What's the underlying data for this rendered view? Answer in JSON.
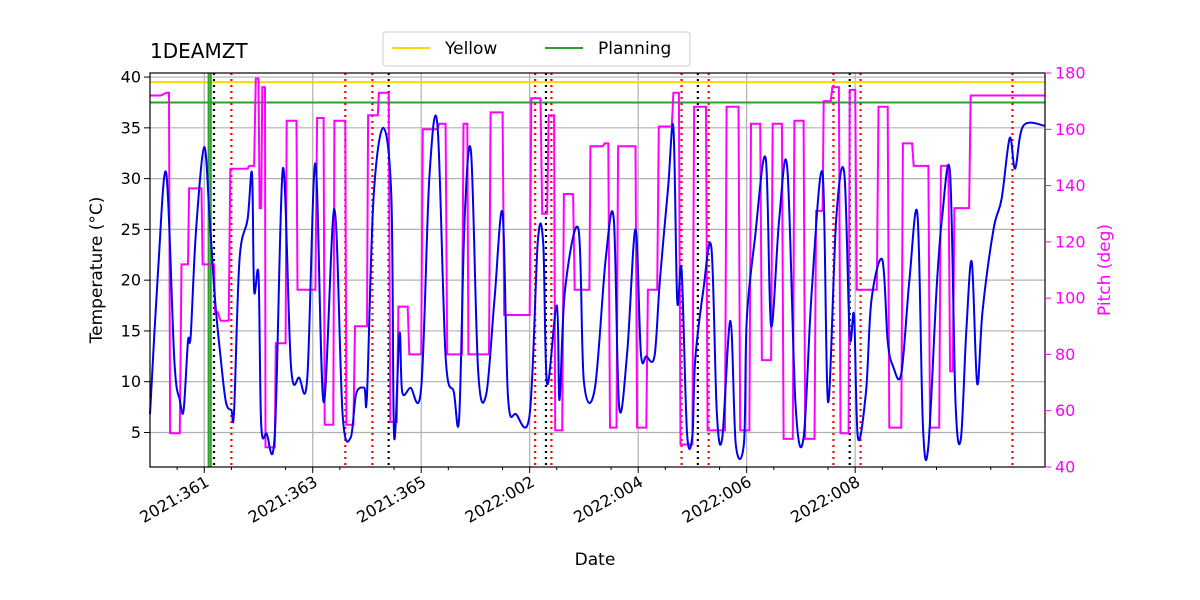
{
  "chart_data": {
    "type": "line",
    "title": "1DEAMZT",
    "xlabel": "Date",
    "ylabel": "Temperature ($^\\circ$C)",
    "ylabel_display": "Temperature (°C)",
    "y2label": "Pitch (deg)",
    "x_units": "day offset from 2021:360.0 (2022:001 = 6)",
    "xlim": [
      0,
      16.5
    ],
    "ylim": [
      1.6,
      40.4
    ],
    "y2lim": [
      40,
      180
    ],
    "grid": true,
    "x_ticks": [
      {
        "value": 1,
        "label": "2021:361"
      },
      {
        "value": 3,
        "label": "2021:363"
      },
      {
        "value": 5,
        "label": "2021:365"
      },
      {
        "value": 7,
        "label": "2022:002"
      },
      {
        "value": 9,
        "label": "2022:004"
      },
      {
        "value": 11,
        "label": "2022:006"
      },
      {
        "value": 13,
        "label": "2022:008"
      }
    ],
    "y_ticks": [
      5,
      10,
      15,
      20,
      25,
      30,
      35,
      40
    ],
    "y2_ticks": [
      40,
      60,
      80,
      100,
      120,
      140,
      160,
      180
    ],
    "legend": {
      "placement": "top-center",
      "entries": [
        {
          "label": "Yellow",
          "color": "#ffd700"
        },
        {
          "label": "Planning",
          "color": "#2ca02c"
        }
      ]
    },
    "limits": [
      {
        "name": "Yellow",
        "value": 39.5,
        "color": "#ffd700"
      },
      {
        "name": "Planning",
        "value": 37.5,
        "color": "#2ca02c"
      }
    ],
    "planning_vertical_lines": [
      1.08,
      1.12
    ],
    "red_dotted_lines": [
      1.5,
      3.6,
      4.1,
      7.1,
      7.4,
      9.8,
      10.3,
      12.6,
      13.1,
      15.9
    ],
    "black_dotted_lines": [
      1.18,
      4.4,
      7.3,
      10.1,
      12.9
    ],
    "temperature_series": {
      "name": "1DEAMZT",
      "color": "#0000ee",
      "points": [
        [
          0,
          6.8
        ],
        [
          0.15,
          21
        ],
        [
          0.3,
          30.5
        ],
        [
          0.45,
          12
        ],
        [
          0.55,
          8.2
        ],
        [
          0.62,
          7.2
        ],
        [
          0.7,
          14
        ],
        [
          0.75,
          14.5
        ],
        [
          0.85,
          25
        ],
        [
          1.0,
          33.1
        ],
        [
          1.1,
          26
        ],
        [
          1.2,
          18
        ],
        [
          1.3,
          12.5
        ],
        [
          1.4,
          8
        ],
        [
          1.5,
          7.2
        ],
        [
          1.55,
          7.1
        ],
        [
          1.65,
          22
        ],
        [
          1.8,
          26
        ],
        [
          1.88,
          30.5
        ],
        [
          1.92,
          19
        ],
        [
          2.0,
          20.5
        ],
        [
          2.05,
          5.8
        ],
        [
          2.15,
          4.9
        ],
        [
          2.3,
          4.8
        ],
        [
          2.45,
          31
        ],
        [
          2.6,
          11.5
        ],
        [
          2.75,
          10.4
        ],
        [
          2.9,
          10.4
        ],
        [
          3.05,
          31.5
        ],
        [
          3.2,
          8
        ],
        [
          3.4,
          27
        ],
        [
          3.55,
          6.8
        ],
        [
          3.7,
          4.5
        ],
        [
          3.8,
          8.8
        ],
        [
          3.95,
          9.4
        ],
        [
          4.0,
          8.7
        ],
        [
          4.12,
          28
        ],
        [
          4.3,
          35
        ],
        [
          4.45,
          28
        ],
        [
          4.5,
          4.6
        ],
        [
          4.6,
          14.8
        ],
        [
          4.65,
          9
        ],
        [
          4.8,
          9.4
        ],
        [
          5.0,
          9.4
        ],
        [
          5.15,
          30
        ],
        [
          5.3,
          35.2
        ],
        [
          5.45,
          12.5
        ],
        [
          5.6,
          9
        ],
        [
          5.7,
          6.5
        ],
        [
          5.8,
          26
        ],
        [
          5.92,
          32.5
        ],
        [
          6.05,
          11
        ],
        [
          6.2,
          8.8
        ],
        [
          6.35,
          18
        ],
        [
          6.5,
          26.6
        ],
        [
          6.6,
          8.5
        ],
        [
          6.75,
          6.8
        ],
        [
          7.0,
          6.8
        ],
        [
          7.15,
          23.8
        ],
        [
          7.25,
          23.5
        ],
        [
          7.32,
          9.8
        ],
        [
          7.5,
          17.5
        ],
        [
          7.55,
          8.2
        ],
        [
          7.65,
          19
        ],
        [
          7.9,
          25
        ],
        [
          8.0,
          10
        ],
        [
          8.2,
          9.3
        ],
        [
          8.4,
          22
        ],
        [
          8.55,
          26
        ],
        [
          8.65,
          7.5
        ],
        [
          8.8,
          13
        ],
        [
          8.95,
          25
        ],
        [
          9.05,
          12.8
        ],
        [
          9.15,
          12.5
        ],
        [
          9.3,
          12.5
        ],
        [
          9.4,
          20
        ],
        [
          9.55,
          29
        ],
        [
          9.65,
          35
        ],
        [
          9.72,
          18
        ],
        [
          9.8,
          21
        ],
        [
          9.9,
          5
        ],
        [
          10.0,
          4.7
        ],
        [
          10.05,
          12
        ],
        [
          10.2,
          19
        ],
        [
          10.35,
          23.2
        ],
        [
          10.45,
          7
        ],
        [
          10.55,
          4.5
        ],
        [
          10.7,
          16
        ],
        [
          10.8,
          3.8
        ],
        [
          10.95,
          4
        ],
        [
          11.0,
          16
        ],
        [
          11.15,
          24
        ],
        [
          11.35,
          32
        ],
        [
          11.45,
          15.5
        ],
        [
          11.6,
          26
        ],
        [
          11.75,
          31
        ],
        [
          11.9,
          7.8
        ],
        [
          12.05,
          4.5
        ],
        [
          12.2,
          19
        ],
        [
          12.4,
          30.5
        ],
        [
          12.5,
          8
        ],
        [
          12.65,
          26
        ],
        [
          12.8,
          30.5
        ],
        [
          12.9,
          14.5
        ],
        [
          12.98,
          16.5
        ],
        [
          13.05,
          4.5
        ],
        [
          13.2,
          9
        ],
        [
          13.3,
          18
        ],
        [
          13.5,
          22
        ],
        [
          13.6,
          14
        ],
        [
          13.7,
          11.5
        ],
        [
          13.85,
          10.8
        ],
        [
          14.0,
          20
        ],
        [
          14.15,
          26.4
        ],
        [
          14.25,
          5.5
        ],
        [
          14.35,
          3.7
        ],
        [
          14.5,
          19
        ],
        [
          14.6,
          26
        ],
        [
          14.75,
          30.5
        ],
        [
          14.85,
          8
        ],
        [
          14.95,
          4.4
        ],
        [
          15.05,
          15
        ],
        [
          15.15,
          21.8
        ],
        [
          15.25,
          9.8
        ],
        [
          15.35,
          17
        ],
        [
          15.55,
          25
        ],
        [
          15.7,
          28
        ],
        [
          15.85,
          34
        ],
        [
          15.95,
          31
        ],
        [
          16.1,
          35.2
        ],
        [
          16.5,
          35.2
        ]
      ]
    },
    "pitch_series": {
      "name": "Pitch",
      "color": "#ff00ff",
      "points": [
        [
          0,
          172
        ],
        [
          0.2,
          172
        ],
        [
          0.3,
          173
        ],
        [
          0.35,
          173
        ],
        [
          0.37,
          52
        ],
        [
          0.55,
          52
        ],
        [
          0.58,
          112
        ],
        [
          0.7,
          112
        ],
        [
          0.72,
          139
        ],
        [
          0.95,
          139
        ],
        [
          0.97,
          112
        ],
        [
          1.18,
          112
        ],
        [
          1.2,
          95
        ],
        [
          1.25,
          95
        ],
        [
          1.3,
          92
        ],
        [
          1.45,
          92
        ],
        [
          1.48,
          146
        ],
        [
          1.8,
          146
        ],
        [
          1.83,
          147
        ],
        [
          1.92,
          147
        ],
        [
          1.95,
          178
        ],
        [
          2.0,
          178
        ],
        [
          2.02,
          132
        ],
        [
          2.05,
          132
        ],
        [
          2.07,
          175
        ],
        [
          2.12,
          175
        ],
        [
          2.13,
          47
        ],
        [
          2.3,
          47
        ],
        [
          2.32,
          84
        ],
        [
          2.5,
          84
        ],
        [
          2.52,
          163
        ],
        [
          2.7,
          163
        ],
        [
          2.72,
          103
        ],
        [
          3.05,
          103
        ],
        [
          3.08,
          164
        ],
        [
          3.2,
          164
        ],
        [
          3.22,
          55
        ],
        [
          3.38,
          55
        ],
        [
          3.4,
          163
        ],
        [
          3.6,
          163
        ],
        [
          3.62,
          55
        ],
        [
          3.75,
          55
        ],
        [
          3.78,
          90
        ],
        [
          4.0,
          90
        ],
        [
          4.02,
          165
        ],
        [
          4.2,
          165
        ],
        [
          4.22,
          173
        ],
        [
          4.4,
          173
        ],
        [
          4.43,
          56
        ],
        [
          4.55,
          56
        ],
        [
          4.58,
          97
        ],
        [
          4.75,
          97
        ],
        [
          4.78,
          80
        ],
        [
          5.0,
          80
        ],
        [
          5.03,
          160
        ],
        [
          5.3,
          160
        ],
        [
          5.33,
          162
        ],
        [
          5.45,
          162
        ],
        [
          5.48,
          80
        ],
        [
          5.75,
          80
        ],
        [
          5.78,
          162
        ],
        [
          5.85,
          162
        ],
        [
          5.87,
          80
        ],
        [
          6.25,
          80
        ],
        [
          6.28,
          166
        ],
        [
          6.5,
          166
        ],
        [
          6.53,
          94
        ],
        [
          7.0,
          94
        ],
        [
          7.03,
          171
        ],
        [
          7.2,
          171
        ],
        [
          7.23,
          130
        ],
        [
          7.32,
          130
        ],
        [
          7.35,
          165
        ],
        [
          7.45,
          165
        ],
        [
          7.47,
          53
        ],
        [
          7.6,
          53
        ],
        [
          7.63,
          137
        ],
        [
          7.8,
          137
        ],
        [
          7.83,
          103
        ],
        [
          8.1,
          103
        ],
        [
          8.12,
          154
        ],
        [
          8.35,
          154
        ],
        [
          8.38,
          155
        ],
        [
          8.45,
          155
        ],
        [
          8.48,
          54
        ],
        [
          8.6,
          54
        ],
        [
          8.63,
          154
        ],
        [
          8.95,
          154
        ],
        [
          8.98,
          54
        ],
        [
          9.15,
          54
        ],
        [
          9.18,
          103
        ],
        [
          9.35,
          103
        ],
        [
          9.38,
          161
        ],
        [
          9.62,
          161
        ],
        [
          9.65,
          173
        ],
        [
          9.75,
          173
        ],
        [
          9.78,
          48
        ],
        [
          10.0,
          48
        ],
        [
          10.03,
          168
        ],
        [
          10.25,
          168
        ],
        [
          10.28,
          53
        ],
        [
          10.6,
          53
        ],
        [
          10.63,
          168
        ],
        [
          10.85,
          168
        ],
        [
          10.88,
          53
        ],
        [
          11.05,
          53
        ],
        [
          11.08,
          162
        ],
        [
          11.25,
          162
        ],
        [
          11.28,
          78
        ],
        [
          11.45,
          78
        ],
        [
          11.48,
          162
        ],
        [
          11.65,
          162
        ],
        [
          11.68,
          50
        ],
        [
          11.85,
          50
        ],
        [
          11.88,
          163
        ],
        [
          12.05,
          163
        ],
        [
          12.08,
          50
        ],
        [
          12.25,
          50
        ],
        [
          12.28,
          131
        ],
        [
          12.4,
          131
        ],
        [
          12.42,
          170
        ],
        [
          12.55,
          170
        ],
        [
          12.58,
          175
        ],
        [
          12.7,
          175
        ],
        [
          12.73,
          52
        ],
        [
          12.88,
          52
        ],
        [
          12.9,
          174
        ],
        [
          13.0,
          174
        ],
        [
          13.03,
          103
        ],
        [
          13.4,
          103
        ],
        [
          13.43,
          168
        ],
        [
          13.6,
          168
        ],
        [
          13.63,
          54
        ],
        [
          13.85,
          54
        ],
        [
          13.88,
          155
        ],
        [
          14.05,
          155
        ],
        [
          14.08,
          147
        ],
        [
          14.35,
          147
        ],
        [
          14.38,
          54
        ],
        [
          14.55,
          54
        ],
        [
          14.58,
          147
        ],
        [
          14.72,
          147
        ],
        [
          14.75,
          74
        ],
        [
          14.8,
          74
        ],
        [
          14.83,
          132
        ],
        [
          15.1,
          132
        ],
        [
          15.13,
          172
        ],
        [
          16.5,
          172
        ]
      ]
    }
  }
}
